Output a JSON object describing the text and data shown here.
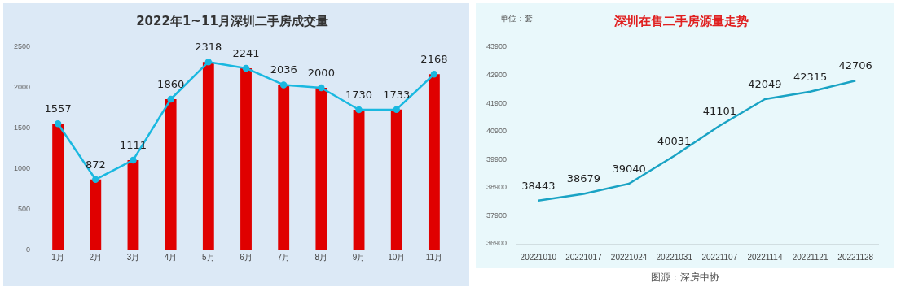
{
  "chart_data": [
    {
      "type": "bar",
      "title": "2022年1~11月深圳二手房成交量",
      "categories": [
        "1月",
        "2月",
        "3月",
        "4月",
        "5月",
        "6月",
        "7月",
        "8月",
        "9月",
        "10月",
        "11月"
      ],
      "series": [
        {
          "type": "bar",
          "color": "#e00000",
          "values": [
            1557,
            872,
            1111,
            1860,
            2318,
            2241,
            2036,
            2000,
            1730,
            1733,
            2168
          ]
        },
        {
          "type": "line",
          "color": "#1ab8e0",
          "values": [
            1557,
            872,
            1111,
            1860,
            2318,
            2241,
            2036,
            2000,
            1730,
            1733,
            2168
          ],
          "value_labels": [
            "1557",
            "872",
            "1111",
            "1860",
            "2318",
            "2241",
            "2036",
            "2000",
            "1730",
            "1733",
            "2168"
          ]
        }
      ],
      "ylim": [
        0,
        2500
      ],
      "yticks": [
        0,
        500,
        1000,
        1500,
        2000,
        2500
      ],
      "grid": false,
      "legend": false,
      "marker": "circle"
    },
    {
      "type": "line",
      "title": "深圳在售二手房源量走势",
      "ylabel": "单位：套",
      "categories": [
        "20221010",
        "20221017",
        "20221024",
        "20221031",
        "20221107",
        "20221114",
        "20221121",
        "20221128"
      ],
      "series": [
        {
          "color": "#1aa3c4",
          "values": [
            38443,
            38679,
            39040,
            40031,
            41101,
            42049,
            42315,
            42706
          ]
        }
      ],
      "ylim": [
        36900,
        43900
      ],
      "yticks": [
        36900,
        37900,
        38900,
        39900,
        40900,
        41900,
        42900,
        43900
      ],
      "grid": false,
      "legend": false,
      "data_labels": true,
      "marker": "none",
      "annotations": [
        "图源：深房中协"
      ]
    }
  ]
}
